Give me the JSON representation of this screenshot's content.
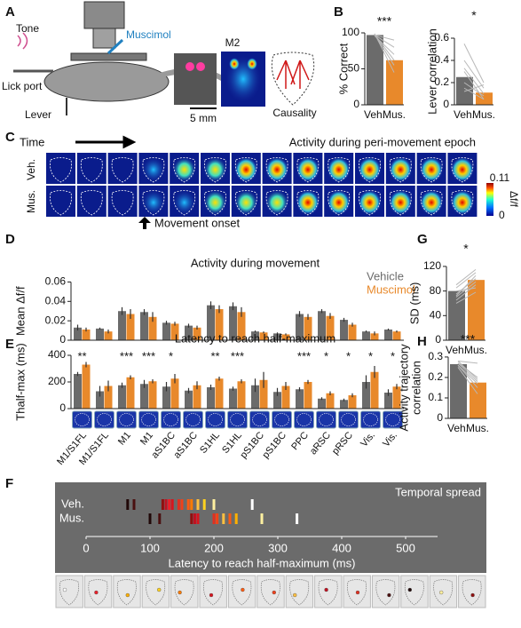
{
  "panel_labels": [
    "A",
    "B",
    "C",
    "D",
    "E",
    "F",
    "G",
    "H"
  ],
  "panel_a": {
    "tone": "Tone",
    "drug": "Muscimol",
    "lick_port": "Lick port",
    "lever": "Lever",
    "region": "M2",
    "scale_bar": "5 mm",
    "diagram": "Causality"
  },
  "panel_c": {
    "time": "Time",
    "title": "Activity during peri-movement epoch",
    "rows": [
      "Veh.",
      "Mus."
    ],
    "onset": "Movement onset",
    "colorbar": {
      "lim": [
        0,
        0.11
      ],
      "label": "Δf/f"
    }
  },
  "chart_data": [
    {
      "type": "paired_bar",
      "categories": [
        "Veh.",
        "Mus."
      ],
      "values": [
        97,
        62
      ],
      "colors": [
        "#6b6b6b",
        "#e8892b"
      ],
      "ylabel": "% Correct",
      "ylim": [
        0,
        100
      ],
      "yticks": [
        0,
        50,
        100
      ],
      "significance": "***",
      "pairs": [
        [
          98,
          55
        ],
        [
          98,
          62
        ],
        [
          97,
          80
        ],
        [
          96,
          70
        ],
        [
          99,
          45
        ],
        [
          97,
          90
        ]
      ]
    },
    {
      "type": "paired_bar",
      "categories": [
        "Veh.",
        "Mus."
      ],
      "values": [
        0.25,
        0.11
      ],
      "colors": [
        "#6b6b6b",
        "#e8892b"
      ],
      "ylabel": "Lever correlation",
      "ylim": [
        0,
        0.7
      ],
      "yticks": [
        0,
        0.2,
        0.4,
        0.6
      ],
      "significance": "*",
      "pairs": [
        [
          0.33,
          0.1
        ],
        [
          0.2,
          0.08
        ],
        [
          0.3,
          0.05
        ],
        [
          0.12,
          0.18
        ],
        [
          0.4,
          0.15
        ],
        [
          0.55,
          0.2
        ],
        [
          0.15,
          0.05
        ]
      ]
    },
    {
      "type": "grouped_bar",
      "title": "Activity during movement",
      "ylabel": "Mean Δf/f",
      "legend": "top-right",
      "ylim": [
        0,
        0.065
      ],
      "yticks": [
        0,
        0.02,
        0.04,
        0.06
      ],
      "series": [
        {
          "name": "Vehicle",
          "color": "#6b6b6b",
          "values": [
            0.013,
            0.012,
            0.03,
            0.029,
            0.018,
            0.015,
            0.036,
            0.035,
            0.009,
            0.007,
            0.027,
            0.03,
            0.021,
            0.009,
            0.011
          ],
          "errors": [
            0.003,
            0.001,
            0.004,
            0.003,
            0.002,
            0.002,
            0.004,
            0.004,
            0.001,
            0.001,
            0.003,
            0.002,
            0.002,
            0.001,
            0.001
          ]
        },
        {
          "name": "Muscimol",
          "color": "#e8892b",
          "values": [
            0.011,
            0.009,
            0.027,
            0.024,
            0.017,
            0.013,
            0.032,
            0.029,
            0.008,
            0.006,
            0.024,
            0.025,
            0.016,
            0.007,
            0.009
          ],
          "errors": [
            0.002,
            0.002,
            0.005,
            0.005,
            0.002,
            0.002,
            0.004,
            0.005,
            0.001,
            0.001,
            0.003,
            0.003,
            0.002,
            0.002,
            0.001
          ]
        }
      ]
    },
    {
      "type": "grouped_bar",
      "title": "Latency to reach half-maximum",
      "ylabel": "Thalf-max (ms)",
      "categories": [
        "M1/S1FL",
        "M1/S1FL",
        "M1",
        "M1",
        "aS1BC",
        "aS1BC",
        "S1HL",
        "S1HL",
        "pS1BC",
        "pS1BC",
        "PPC",
        "aRSC",
        "pRSC",
        "Vis.",
        "Vis."
      ],
      "ylim": [
        0,
        420
      ],
      "yticks": [
        0,
        200,
        400
      ],
      "significance": [
        "**",
        null,
        "***",
        "***",
        "*",
        null,
        "**",
        "***",
        null,
        null,
        "***",
        "*",
        "*",
        "*",
        "*"
      ],
      "series": [
        {
          "color": "#6b6b6b",
          "values": [
            260,
            130,
            175,
            185,
            165,
            135,
            160,
            150,
            175,
            125,
            145,
            75,
            65,
            200,
            120
          ],
          "errors": [
            15,
            40,
            20,
            30,
            35,
            20,
            20,
            15,
            50,
            30,
            15,
            10,
            10,
            50,
            25
          ]
        },
        {
          "color": "#e8892b",
          "values": [
            330,
            170,
            235,
            205,
            225,
            175,
            225,
            205,
            215,
            170,
            200,
            115,
            100,
            275,
            165
          ],
          "errors": [
            20,
            40,
            15,
            15,
            35,
            30,
            15,
            15,
            60,
            30,
            15,
            15,
            15,
            45,
            20
          ]
        }
      ]
    },
    {
      "type": "paired_bar",
      "categories": [
        "Veh.",
        "Mus."
      ],
      "values": [
        80,
        98
      ],
      "colors": [
        "#6b6b6b",
        "#e8892b"
      ],
      "ylabel": "SD (ms)",
      "ylim": [
        0,
        130
      ],
      "yticks": [
        0,
        40,
        80,
        120
      ],
      "significance": "*",
      "pairs": [
        [
          65,
          90
        ],
        [
          80,
          85
        ],
        [
          75,
          100
        ],
        [
          85,
          110
        ],
        [
          90,
          115
        ],
        [
          70,
          95
        ],
        [
          60,
          78
        ],
        [
          72,
          105
        ]
      ]
    },
    {
      "type": "paired_bar",
      "categories": [
        "Veh.",
        "Mus."
      ],
      "values": [
        0.265,
        0.175
      ],
      "colors": [
        "#6b6b6b",
        "#e8892b"
      ],
      "ylabel_lines": [
        "Activity trajectory",
        "correlation"
      ],
      "ylim": [
        0,
        0.33
      ],
      "yticks": [
        0,
        0.1,
        0.2,
        0.3
      ],
      "significance": "***",
      "pairs": [
        [
          0.28,
          0.27
        ],
        [
          0.27,
          0.2
        ],
        [
          0.26,
          0.15
        ],
        [
          0.25,
          0.12
        ],
        [
          0.27,
          0.18
        ],
        [
          0.28,
          0.19
        ],
        [
          0.26,
          0.17
        ]
      ]
    },
    {
      "type": "strip",
      "title": "Temporal spread",
      "xlabel": "Latency to reach half-maximum (ms)",
      "xlim": [
        0,
        550
      ],
      "xticks": [
        0,
        100,
        200,
        300,
        400,
        500
      ],
      "colors": [
        "#ffffff",
        "#e8202a",
        "#ffb000",
        "#ffd21f",
        "#ff7a00",
        "#d8141e",
        "#ff5a10",
        "#f0401a",
        "#ffc040",
        "#c01020",
        "#e03020",
        "#4a1010",
        "#200808",
        "#fff0a0",
        "#901010"
      ],
      "rows": [
        {
          "name": "Veh.",
          "values": [
            260,
            130,
            175,
            185,
            165,
            135,
            160,
            150,
            175,
            125,
            145,
            75,
            65,
            200,
            120
          ]
        },
        {
          "name": "Mus.",
          "values": [
            330,
            170,
            235,
            205,
            225,
            175,
            225,
            205,
            215,
            170,
            200,
            115,
            100,
            275,
            165
          ]
        }
      ]
    }
  ]
}
